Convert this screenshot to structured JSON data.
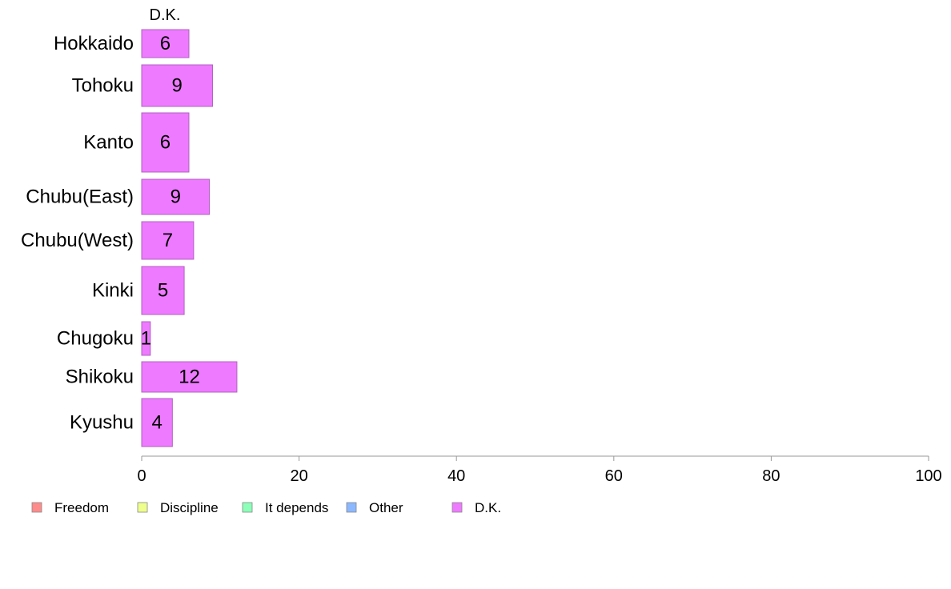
{
  "chart_data": {
    "type": "bar",
    "orientation": "horizontal",
    "panel_title": "D.K.",
    "categories": [
      "Hokkaido",
      "Tohoku",
      "Kanto",
      "Chubu(East)",
      "Chubu(West)",
      "Kinki",
      "Chugoku",
      "Shikoku",
      "Kyushu"
    ],
    "series": [
      {
        "name": "D.K.",
        "values": [
          6,
          9,
          6,
          8.6,
          6.6,
          5.4,
          1.1,
          12.1,
          3.9
        ],
        "labels": [
          "6",
          "9",
          "6",
          "9",
          "7",
          "5",
          "1",
          "12",
          "4"
        ]
      }
    ],
    "xlim": [
      0,
      100
    ],
    "x_ticks": [
      "0",
      "20",
      "40",
      "60",
      "80",
      "100"
    ],
    "x_tick_values": [
      0,
      20,
      40,
      60,
      80,
      100
    ],
    "grid": false,
    "legend_position": "bottom",
    "legend": [
      {
        "label": "Freedom",
        "color": "#ff8c8c"
      },
      {
        "label": "Discipline",
        "color": "#eeff8c"
      },
      {
        "label": "It depends",
        "color": "#8cffb8"
      },
      {
        "label": "Other",
        "color": "#8cb8ff"
      },
      {
        "label": "D.K.",
        "color": "#ee7aff"
      }
    ],
    "bar_color": "#ee7aff",
    "bar_border_color": "#b060c0",
    "axis_color": "#999999"
  }
}
